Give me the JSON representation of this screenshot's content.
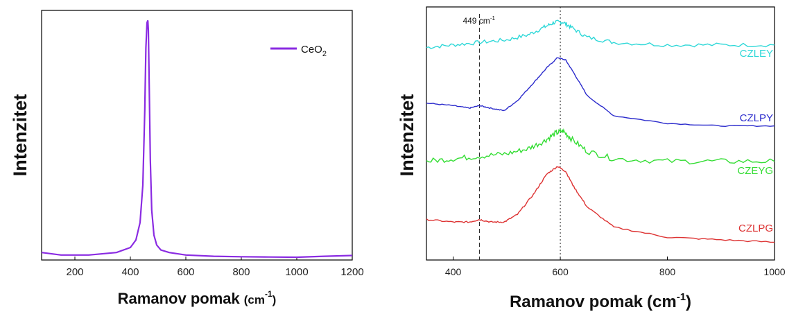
{
  "chart_data": [
    {
      "type": "line",
      "ylabel": "Intenzitet",
      "xlabel": "Ramanov pomak",
      "xlabel_unit_base": "(cm",
      "xlabel_unit_exp": "-1",
      "xlabel_unit_close": ")",
      "xlim": [
        80,
        1200
      ],
      "xticks": [
        200,
        400,
        600,
        800,
        1000,
        1200
      ],
      "ylim": [
        0,
        100
      ],
      "yticks_shown": false,
      "legend_position": "top-right",
      "series": [
        {
          "name_base": "CeO",
          "name_sub": "2",
          "color": "#8A2BE2",
          "x": [
            80,
            150,
            250,
            350,
            400,
            420,
            435,
            445,
            452,
            456,
            460,
            463,
            465,
            468,
            472,
            477,
            485,
            495,
            510,
            540,
            600,
            700,
            800,
            900,
            1000,
            1100,
            1200
          ],
          "y": [
            3,
            2,
            2,
            3,
            5,
            8,
            15,
            30,
            60,
            85,
            95,
            96,
            92,
            70,
            40,
            20,
            10,
            6,
            4,
            3,
            2,
            1.5,
            1.3,
            1.2,
            1.1,
            1.5,
            1.8
          ]
        }
      ]
    },
    {
      "type": "line",
      "ylabel": "Intenzitet",
      "xlabel": "Ramanov pomak",
      "xlabel_unit": "(cm",
      "xlabel_unit_exp": "-1",
      "xlabel_unit_close": ")",
      "xlim": [
        350,
        1000
      ],
      "xticks": [
        400,
        600,
        800,
        1000
      ],
      "ylim": [
        0,
        100
      ],
      "yticks_shown": false,
      "annotations": [
        {
          "text": "449 cm",
          "text_exp": "-1",
          "x": 449,
          "line_style": "dashed"
        },
        {
          "x": 600,
          "line_style": "dotted"
        }
      ],
      "series": [
        {
          "name": "CZLEY",
          "color": "#2FD8D8",
          "x": [
            350,
            400,
            450,
            500,
            540,
            570,
            590,
            605,
            620,
            650,
            700,
            800,
            900,
            1000
          ],
          "y": [
            84,
            85,
            86,
            87,
            89,
            92,
            94,
            94,
            92,
            88,
            86,
            85,
            85,
            85
          ]
        },
        {
          "name": "CZLPY",
          "color": "#2B2BCC",
          "x": [
            350,
            400,
            430,
            449,
            470,
            495,
            520,
            550,
            575,
            595,
            610,
            625,
            650,
            700,
            800,
            900,
            1000
          ],
          "y": [
            62,
            61,
            60,
            61,
            60,
            59,
            63,
            70,
            76,
            80,
            79,
            74,
            65,
            57,
            54,
            53,
            53
          ]
        },
        {
          "name": "CZEYG",
          "color": "#33DD33",
          "x": [
            350,
            400,
            450,
            500,
            540,
            570,
            590,
            605,
            620,
            650,
            700,
            800,
            900,
            1000
          ],
          "y": [
            39,
            40,
            41,
            42,
            44,
            47,
            50,
            51,
            48,
            43,
            40,
            39,
            39,
            39
          ]
        },
        {
          "name": "CZLPG",
          "color": "#DD3333",
          "x": [
            350,
            400,
            430,
            449,
            470,
            495,
            520,
            550,
            575,
            595,
            610,
            625,
            650,
            700,
            800,
            900,
            1000
          ],
          "y": [
            16,
            15,
            15,
            16,
            15,
            15,
            18,
            26,
            34,
            37,
            35,
            29,
            21,
            13,
            9,
            8,
            7
          ]
        }
      ]
    }
  ],
  "colors": {
    "axis": "#000000",
    "text": "#111111"
  }
}
